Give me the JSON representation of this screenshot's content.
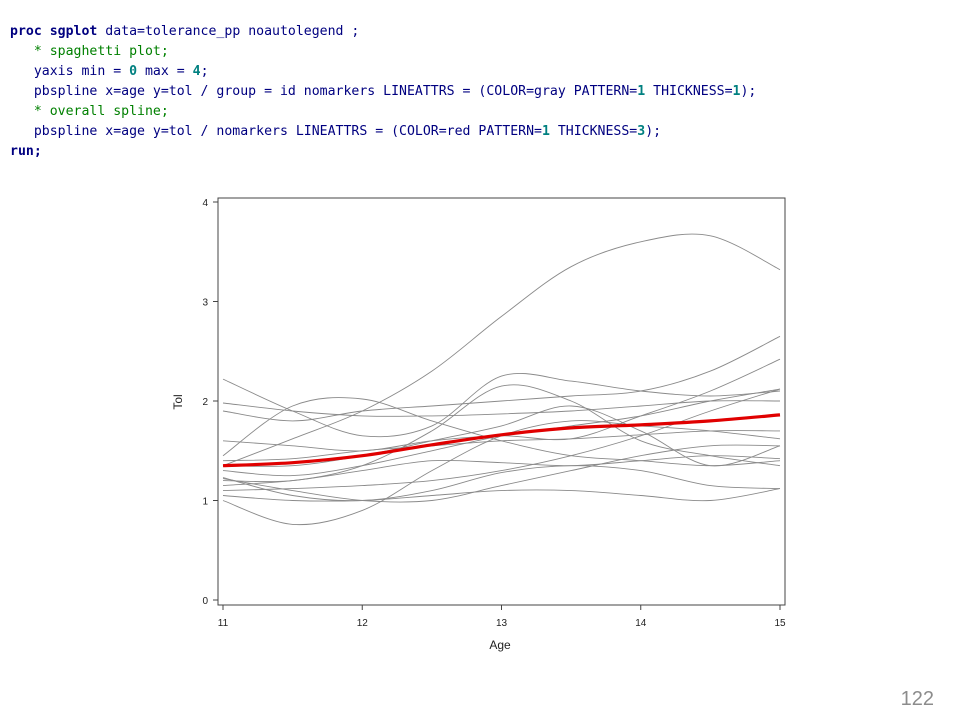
{
  "code": {
    "lines": [
      [
        {
          "t": "proc sgplot",
          "c": "kw"
        },
        {
          "t": " data=tolerance_pp noautolegend ;",
          "c": "id"
        }
      ],
      [
        {
          "t": "   ",
          "c": "pl"
        },
        {
          "t": "* spaghetti plot;",
          "c": "cm"
        }
      ],
      [
        {
          "t": "   yaxis min = ",
          "c": "id"
        },
        {
          "t": "0",
          "c": "num"
        },
        {
          "t": " max = ",
          "c": "id"
        },
        {
          "t": "4",
          "c": "num"
        },
        {
          "t": ";",
          "c": "id"
        }
      ],
      [
        {
          "t": "   pbspline x=age y=tol / group = id nomarkers LINEATTRS = (COLOR=gray PATTERN=",
          "c": "id"
        },
        {
          "t": "1",
          "c": "num"
        },
        {
          "t": " THICKNESS=",
          "c": "id"
        },
        {
          "t": "1",
          "c": "num"
        },
        {
          "t": ");",
          "c": "id"
        }
      ],
      [
        {
          "t": "   ",
          "c": "pl"
        },
        {
          "t": "* overall spline;",
          "c": "cm"
        }
      ],
      [
        {
          "t": "   pbspline x=age y=tol / nomarkers LINEATTRS = (COLOR=red PATTERN=",
          "c": "id"
        },
        {
          "t": "1",
          "c": "num"
        },
        {
          "t": " THICKNESS=",
          "c": "id"
        },
        {
          "t": "3",
          "c": "num"
        },
        {
          "t": ");",
          "c": "id"
        }
      ],
      [
        {
          "t": "run;",
          "c": "kw"
        }
      ]
    ]
  },
  "chart_data": {
    "type": "line",
    "xlabel": "Age",
    "ylabel": "Tol",
    "xlim": [
      11,
      15
    ],
    "ylim": [
      0,
      4
    ],
    "xticks": [
      11,
      12,
      13,
      14,
      15
    ],
    "yticks": [
      0,
      1,
      2,
      3,
      4
    ],
    "grid": false,
    "legend": "none",
    "group_color": "#8a8a8a",
    "overall_color": "#e00000",
    "x": [
      11,
      11.5,
      12,
      12.5,
      13,
      13.5,
      14,
      14.5,
      15
    ],
    "series": [
      {
        "values": [
          1.35,
          1.62,
          1.9,
          2.3,
          2.85,
          3.35,
          3.6,
          3.66,
          3.32
        ]
      },
      {
        "values": [
          1.2,
          1.2,
          1.35,
          1.7,
          2.15,
          2.0,
          1.6,
          1.45,
          1.35
        ]
      },
      {
        "values": [
          2.22,
          1.9,
          1.65,
          1.75,
          2.25,
          2.2,
          2.1,
          2.05,
          2.1
        ]
      },
      {
        "values": [
          1.98,
          1.9,
          1.85,
          1.85,
          1.87,
          1.9,
          1.95,
          2.0,
          2.0
        ]
      },
      {
        "values": [
          1.45,
          1.95,
          2.02,
          1.8,
          1.6,
          1.45,
          1.4,
          1.35,
          1.4
        ]
      },
      {
        "values": [
          1.0,
          0.76,
          0.9,
          1.3,
          1.65,
          1.8,
          1.75,
          1.7,
          1.62
        ]
      },
      {
        "values": [
          1.22,
          1.1,
          1.0,
          1.0,
          1.15,
          1.3,
          1.45,
          1.55,
          1.55
        ]
      },
      {
        "values": [
          1.3,
          1.25,
          1.35,
          1.5,
          1.65,
          1.75,
          1.85,
          2.0,
          2.12
        ]
      },
      {
        "values": [
          1.1,
          1.12,
          1.15,
          1.2,
          1.3,
          1.45,
          1.65,
          1.9,
          2.12
        ]
      },
      {
        "values": [
          1.23,
          1.05,
          1.0,
          1.1,
          1.28,
          1.35,
          1.3,
          1.15,
          1.12
        ]
      },
      {
        "values": [
          1.4,
          1.42,
          1.5,
          1.55,
          1.6,
          1.62,
          1.66,
          1.7,
          1.7
        ]
      },
      {
        "values": [
          1.05,
          1.0,
          1.0,
          1.05,
          1.1,
          1.1,
          1.05,
          1.0,
          1.12
        ]
      },
      {
        "values": [
          1.9,
          1.8,
          1.9,
          1.95,
          2.0,
          2.05,
          2.1,
          2.3,
          2.65
        ]
      },
      {
        "values": [
          1.6,
          1.55,
          1.5,
          1.6,
          1.65,
          1.62,
          1.85,
          2.1,
          2.42
        ]
      },
      {
        "values": [
          1.15,
          1.2,
          1.3,
          1.4,
          1.38,
          1.35,
          1.4,
          1.45,
          1.42
        ]
      },
      {
        "values": [
          1.35,
          1.35,
          1.45,
          1.6,
          1.75,
          1.95,
          1.7,
          1.35,
          1.55
        ]
      }
    ],
    "overall": {
      "x": [
        11,
        11.5,
        12,
        12.5,
        13,
        13.5,
        14,
        14.5,
        15
      ],
      "values": [
        1.35,
        1.38,
        1.45,
        1.56,
        1.66,
        1.73,
        1.76,
        1.8,
        1.86
      ]
    }
  },
  "page_number": "122"
}
